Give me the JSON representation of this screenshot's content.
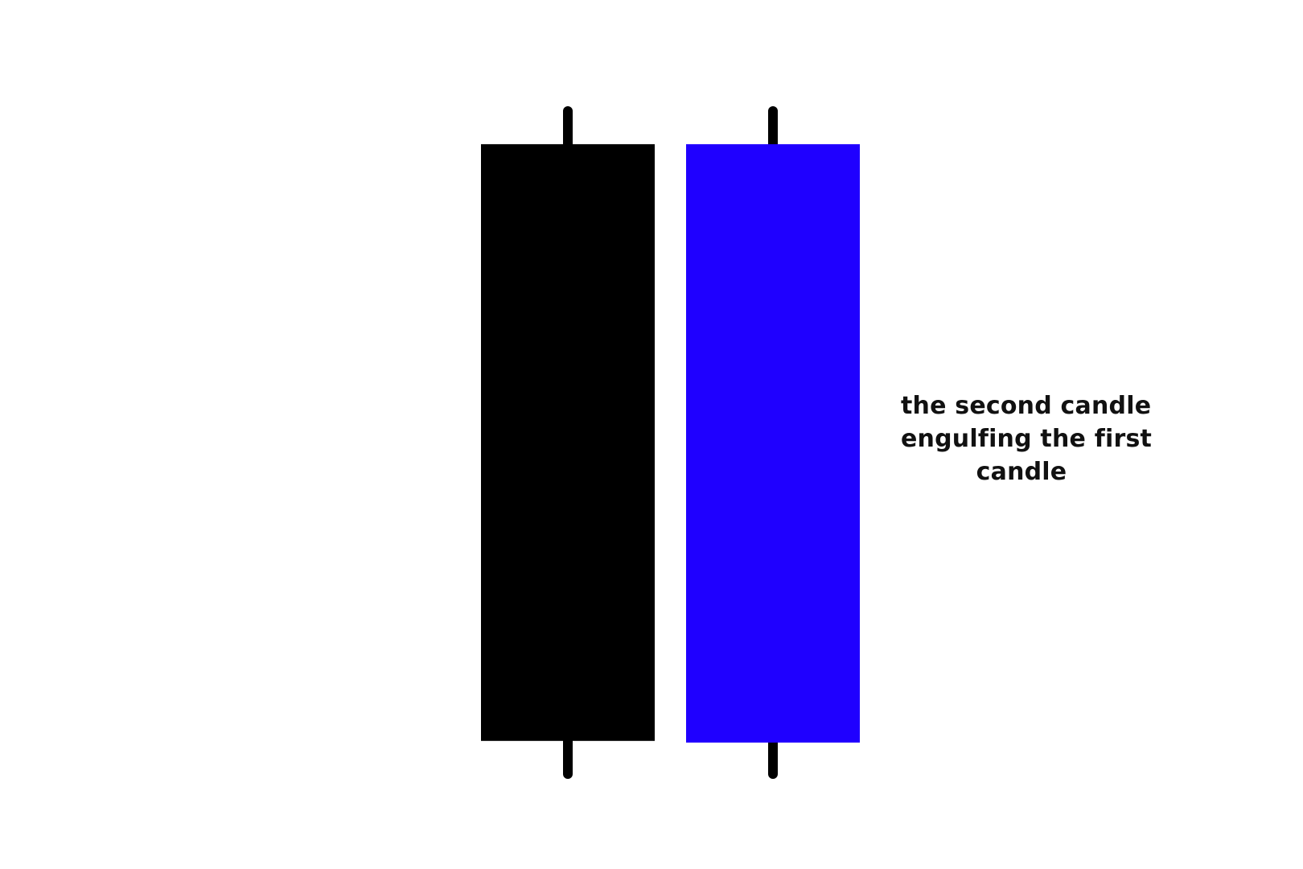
{
  "diagram": {
    "caption_lines": [
      "the second candle",
      "engulfing the first",
      "candle"
    ],
    "candles": [
      {
        "id": "first",
        "body_color": "#000000",
        "wick_color": "#000000",
        "high": 10,
        "open": 9,
        "close": -9,
        "low": -10
      },
      {
        "id": "second",
        "body_color": "#1f00ff",
        "wick_color": "#000000",
        "high": 10,
        "open": -9.05,
        "close": 9,
        "low": -10
      }
    ],
    "colors": {
      "background": "#ffffff",
      "text": "#111111"
    }
  }
}
